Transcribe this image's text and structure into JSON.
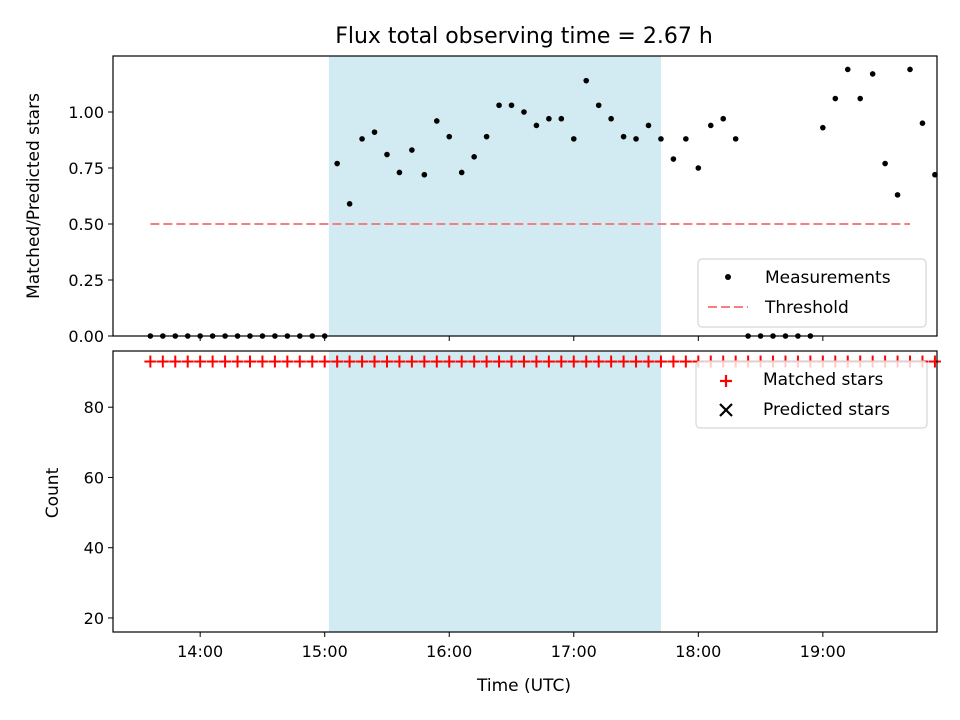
{
  "chart_data": [
    {
      "type": "scatter",
      "title": "Flux total observing time = 2.67 h",
      "ylabel": "Matched/Predicted stars",
      "xlim": [
        "13:18",
        "19:55"
      ],
      "ylim": [
        0,
        1.25
      ],
      "yticks": [
        "0.00",
        "0.25",
        "0.50",
        "0.75",
        "1.00"
      ],
      "shaded_interval": [
        "15:02",
        "17:42"
      ],
      "legend_position": "lower-right",
      "threshold": {
        "name": "Threshold",
        "value": 0.5,
        "x": [
          "13:36",
          "19:42"
        ],
        "color": "#f47f7f"
      },
      "series": [
        {
          "name": "Measurements",
          "color": "#000000",
          "marker": "dot",
          "points": [
            [
              "13:36",
              0
            ],
            [
              "13:42",
              0
            ],
            [
              "13:48",
              0
            ],
            [
              "13:54",
              0
            ],
            [
              "14:00",
              0
            ],
            [
              "14:06",
              0
            ],
            [
              "14:12",
              0
            ],
            [
              "14:18",
              0
            ],
            [
              "14:24",
              0
            ],
            [
              "14:30",
              0
            ],
            [
              "14:36",
              0
            ],
            [
              "14:42",
              0
            ],
            [
              "14:48",
              0
            ],
            [
              "14:54",
              0
            ],
            [
              "15:00",
              0
            ],
            [
              "15:06",
              0.77
            ],
            [
              "15:12",
              0.59
            ],
            [
              "15:18",
              0.88
            ],
            [
              "15:24",
              0.91
            ],
            [
              "15:30",
              0.81
            ],
            [
              "15:36",
              0.73
            ],
            [
              "15:42",
              0.83
            ],
            [
              "15:48",
              0.72
            ],
            [
              "15:54",
              0.96
            ],
            [
              "16:00",
              0.89
            ],
            [
              "16:06",
              0.73
            ],
            [
              "16:12",
              0.8
            ],
            [
              "16:18",
              0.89
            ],
            [
              "16:24",
              1.03
            ],
            [
              "16:30",
              1.03
            ],
            [
              "16:36",
              1.0
            ],
            [
              "16:42",
              0.94
            ],
            [
              "16:48",
              0.97
            ],
            [
              "16:54",
              0.97
            ],
            [
              "17:00",
              0.88
            ],
            [
              "17:06",
              1.14
            ],
            [
              "17:12",
              1.03
            ],
            [
              "17:18",
              0.97
            ],
            [
              "17:24",
              0.89
            ],
            [
              "17:30",
              0.88
            ],
            [
              "17:36",
              0.94
            ],
            [
              "17:42",
              0.88
            ],
            [
              "17:48",
              0.79
            ],
            [
              "17:54",
              0.88
            ],
            [
              "18:00",
              0.75
            ],
            [
              "18:06",
              0.94
            ],
            [
              "18:12",
              0.97
            ],
            [
              "18:18",
              0.88
            ],
            [
              "18:24",
              0
            ],
            [
              "18:30",
              0
            ],
            [
              "18:36",
              0
            ],
            [
              "18:42",
              0
            ],
            [
              "18:48",
              0
            ],
            [
              "18:54",
              0
            ],
            [
              "19:00",
              0.93
            ],
            [
              "19:06",
              1.06
            ],
            [
              "19:12",
              1.19
            ],
            [
              "19:18",
              1.06
            ],
            [
              "19:24",
              1.17
            ],
            [
              "19:30",
              0.77
            ],
            [
              "19:36",
              0.63
            ],
            [
              "19:42",
              1.19
            ],
            [
              "19:48",
              0.95
            ],
            [
              "19:54",
              0.72
            ]
          ]
        }
      ]
    },
    {
      "type": "scatter",
      "xlabel": "Time (UTC)",
      "ylabel": "Count",
      "xlim": [
        "13:18",
        "19:55"
      ],
      "ylim": [
        16,
        96
      ],
      "yticks": [
        "20",
        "40",
        "60",
        "80"
      ],
      "xticks": [
        "14:00",
        "15:00",
        "16:00",
        "17:00",
        "18:00",
        "19:00"
      ],
      "shaded_interval": [
        "15:02",
        "17:42"
      ],
      "legend_position": "upper-right",
      "series": [
        {
          "name": "Matched stars",
          "color": "#ff0000",
          "marker": "plus",
          "points": [
            [
              "13:36",
              93
            ],
            [
              "13:42",
              93
            ],
            [
              "13:48",
              93
            ],
            [
              "13:54",
              93
            ],
            [
              "14:00",
              93
            ],
            [
              "14:06",
              93
            ],
            [
              "14:12",
              93
            ],
            [
              "14:18",
              93
            ],
            [
              "14:24",
              93
            ],
            [
              "14:30",
              93
            ],
            [
              "14:36",
              93
            ],
            [
              "14:42",
              93
            ],
            [
              "14:48",
              93
            ],
            [
              "14:54",
              93
            ],
            [
              "15:00",
              93
            ],
            [
              "15:06",
              93
            ],
            [
              "15:12",
              93
            ],
            [
              "15:18",
              93
            ],
            [
              "15:24",
              93
            ],
            [
              "15:30",
              93
            ],
            [
              "15:36",
              93
            ],
            [
              "15:42",
              93
            ],
            [
              "15:48",
              93
            ],
            [
              "15:54",
              93
            ],
            [
              "16:00",
              93
            ],
            [
              "16:06",
              93
            ],
            [
              "16:12",
              93
            ],
            [
              "16:18",
              93
            ],
            [
              "16:24",
              93
            ],
            [
              "16:30",
              93
            ],
            [
              "16:36",
              93
            ],
            [
              "16:42",
              93
            ],
            [
              "16:48",
              93
            ],
            [
              "16:54",
              93
            ],
            [
              "17:00",
              93
            ],
            [
              "17:06",
              93
            ],
            [
              "17:12",
              93
            ],
            [
              "17:18",
              93
            ],
            [
              "17:24",
              93
            ],
            [
              "17:30",
              93
            ],
            [
              "17:36",
              93
            ],
            [
              "17:42",
              93
            ],
            [
              "17:48",
              93
            ],
            [
              "17:54",
              93
            ],
            [
              "18:00",
              93
            ],
            [
              "18:06",
              93
            ],
            [
              "18:12",
              93
            ],
            [
              "18:18",
              93
            ],
            [
              "18:24",
              93
            ],
            [
              "18:30",
              93
            ],
            [
              "18:36",
              93
            ],
            [
              "18:42",
              93
            ],
            [
              "18:48",
              93
            ],
            [
              "18:54",
              93
            ],
            [
              "19:00",
              93
            ],
            [
              "19:06",
              93
            ],
            [
              "19:12",
              93
            ],
            [
              "19:18",
              93
            ],
            [
              "19:24",
              93
            ],
            [
              "19:30",
              93
            ],
            [
              "19:36",
              93
            ],
            [
              "19:42",
              93
            ],
            [
              "19:48",
              93
            ],
            [
              "19:54",
              93
            ]
          ]
        },
        {
          "name": "Predicted stars",
          "color": "#000000",
          "marker": "cross",
          "points": []
        }
      ]
    }
  ],
  "colors": {
    "shade": "#add8e6",
    "measurements": "#000000",
    "matched": "#ff0000",
    "predicted": "#000000",
    "threshold": "#f47f7f"
  }
}
